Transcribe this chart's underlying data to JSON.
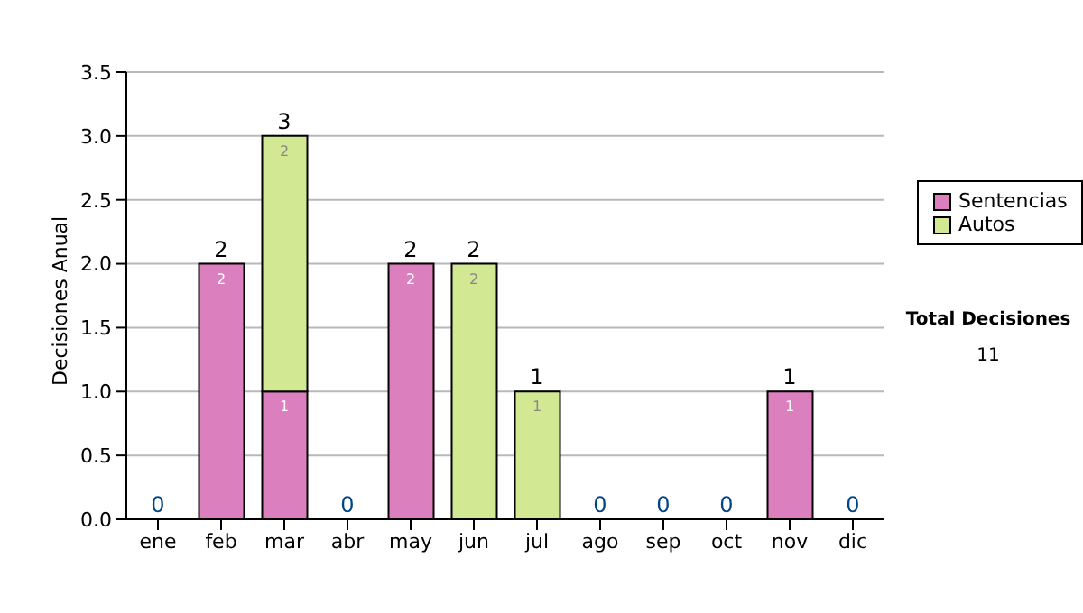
{
  "chart_data": {
    "type": "bar",
    "stacked": true,
    "ylabel": "Decisiones Anual",
    "categories": [
      "ene",
      "feb",
      "mar",
      "abr",
      "may",
      "jun",
      "jul",
      "ago",
      "sep",
      "oct",
      "nov",
      "dic"
    ],
    "series": [
      {
        "name": "Sentencias",
        "color": "#dc7fbf",
        "values": [
          0,
          2,
          1,
          0,
          2,
          0,
          0,
          0,
          0,
          0,
          1,
          0
        ],
        "value_labels": [
          null,
          "2",
          "1",
          null,
          "2",
          null,
          null,
          null,
          null,
          null,
          "1",
          null
        ]
      },
      {
        "name": "Autos",
        "color": "#d2e893",
        "values": [
          0,
          0,
          2,
          0,
          0,
          2,
          1,
          0,
          0,
          0,
          0,
          0
        ],
        "value_labels": [
          null,
          null,
          "2",
          null,
          null,
          "2",
          "1",
          null,
          null,
          null,
          null,
          null
        ]
      }
    ],
    "totals": [
      "0",
      "2",
      "3",
      "0",
      "2",
      "2",
      "1",
      "0",
      "0",
      "0",
      "1",
      "0"
    ],
    "ylim": [
      0,
      3.5
    ],
    "yticks": [
      {
        "value": 0,
        "label": "0.0"
      },
      0.5,
      {
        "value": 1,
        "label": "1.0"
      },
      1.5,
      {
        "value": 2,
        "label": "2.0"
      },
      2.5,
      {
        "value": 3,
        "label": "3.0"
      },
      3.5
    ],
    "grid": "y",
    "legend": "right",
    "annotations": [
      "Total Decisiones",
      "11"
    ]
  }
}
